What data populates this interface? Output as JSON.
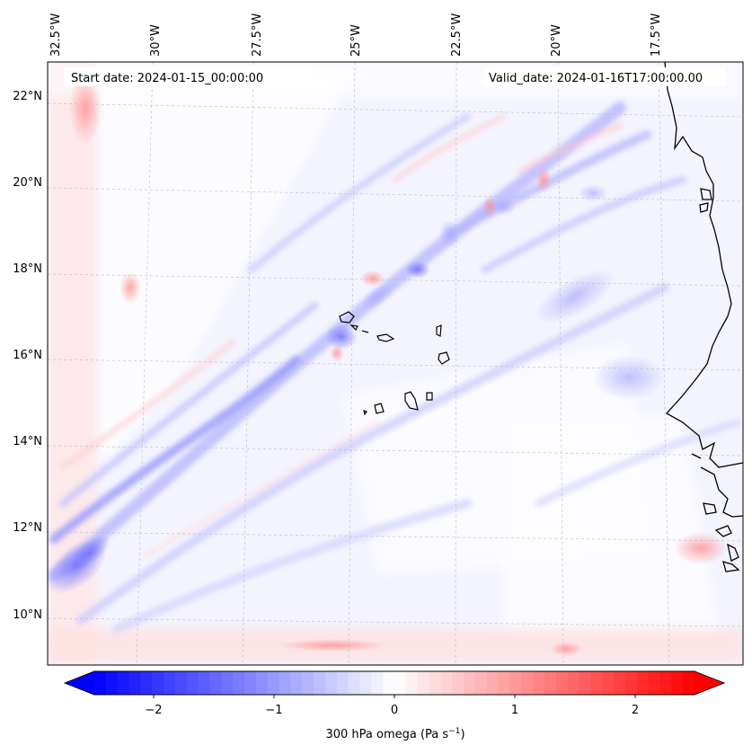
{
  "map": {
    "start_date": "Start date: 2024-01-15_00:00:00",
    "valid_date": "Valid_date: 2024-01-16T17:00:00.00",
    "lon_labels": [
      "32.5°W",
      "30°W",
      "27.5°W",
      "25°W",
      "22.5°W",
      "20°W",
      "17.5°W"
    ],
    "lat_labels": [
      "22°N",
      "20°N",
      "18°N",
      "16°N",
      "14°N",
      "12°N",
      "10°N"
    ],
    "colorbar": {
      "ticks": [
        "−2",
        "−1",
        "0",
        "1",
        "2"
      ],
      "label_main": "300 hPa omega (Pa s",
      "label_sup": "−1",
      "label_close": ")",
      "range": [
        -2.6,
        2.6
      ],
      "colors": {
        "negative": "#0000ff",
        "zero": "#ffffff",
        "positive": "#ff0000"
      }
    },
    "colors": {
      "coastline": "#000000",
      "gridline": "#bbbbbb",
      "frame": "#000000"
    }
  }
}
